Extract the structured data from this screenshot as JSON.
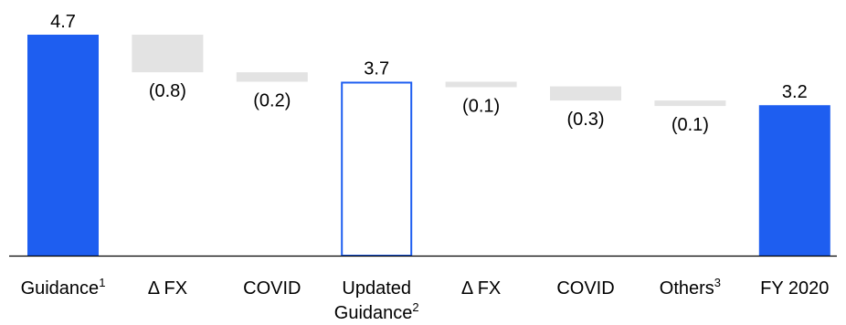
{
  "chart_data": {
    "type": "bar",
    "subtype": "waterfall",
    "categories": [
      {
        "label": "Guidance",
        "sup": "1"
      },
      {
        "label": "Δ FX",
        "sup": ""
      },
      {
        "label": "COVID",
        "sup": ""
      },
      {
        "label": "Updated",
        "line2": "Guidance",
        "sup": "2"
      },
      {
        "label": "Δ FX",
        "sup": ""
      },
      {
        "label": "COVID",
        "sup": ""
      },
      {
        "label": "Others",
        "sup": "3"
      },
      {
        "label": "FY 2020",
        "sup": ""
      }
    ],
    "values": [
      4.7,
      -0.8,
      -0.2,
      3.7,
      -0.1,
      -0.3,
      -0.1,
      3.2
    ],
    "kinds": [
      "total",
      "delta",
      "delta",
      "subtotal",
      "delta",
      "delta",
      "delta",
      "total"
    ],
    "value_labels": [
      "4.7",
      "(0.8)",
      "(0.2)",
      "3.7",
      "(0.1)",
      "(0.3)",
      "(0.1)",
      "3.2"
    ],
    "colors": {
      "total": "#1e5ef0",
      "subtotal_outline": "#1e5ef0",
      "delta": "#e3e3e3",
      "axis": "#000000"
    },
    "ylim": [
      0,
      4.7
    ],
    "grid": false,
    "legend": "none"
  }
}
